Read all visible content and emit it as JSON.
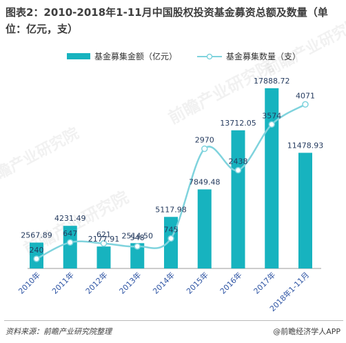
{
  "title": "图表2：2010-2018年1-11月中国股权投资基金募资总额及数量（单位：亿元，支）",
  "chart_data": {
    "type": "bar+line",
    "title": "图表2：2010-2018年1-11月中国股权投资基金募资总额及数量（单位：亿元，支）",
    "categories": [
      "2010年",
      "2011年",
      "2012年",
      "2013年",
      "2014年",
      "2015年",
      "2016年",
      "2017年",
      "2018年1-11月"
    ],
    "series": [
      {
        "name": "基金募集金额（亿元）",
        "type": "bar",
        "values": [
          2567.89,
          4231.49,
          2177.91,
          2514.5,
          5117.98,
          7849.48,
          13712.05,
          17888.72,
          11478.93
        ],
        "labels": [
          "2567.89",
          "4231.49",
          "2177.91",
          "2514.50",
          "5117.98",
          "7849.48",
          "13712.05",
          "17888.72",
          "11478.93"
        ],
        "color": "#17b3bf",
        "ylim": [
          0,
          20000
        ]
      },
      {
        "name": "基金募集数量（支）",
        "type": "line",
        "values": [
          240,
          647,
          621,
          548,
          745,
          2970,
          2438,
          3574,
          4071
        ],
        "labels": [
          "240",
          "647",
          "621",
          "548",
          "745",
          "2970",
          "2438",
          "3574",
          "4071"
        ],
        "color": "#7fd3dd",
        "ylim": [
          0,
          5000
        ]
      }
    ],
    "legend": "top",
    "grid": false
  },
  "watermark": "前瞻产业研究院",
  "footer": {
    "source": "资料来源：前瞻产业研究院整理",
    "brand": "@前瞻经济学人APP"
  },
  "colors": {
    "bar": "#17b3bf",
    "line": "#7fd3dd",
    "value_text": "#243a5e",
    "axis_text": "#2f55a4"
  }
}
